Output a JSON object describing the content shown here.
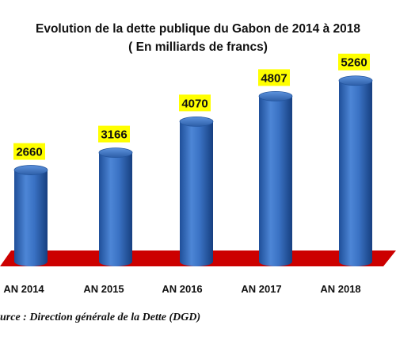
{
  "chart_data": {
    "type": "bar",
    "title": "Evolution de la dette publique du Gabon de 2014 à 2018",
    "subtitle": "( En milliards de francs)",
    "categories": [
      "AN 2014",
      "AN 2015",
      "AN 2016",
      "AN 2017",
      "AN 2018"
    ],
    "values": [
      2660,
      3166,
      4070,
      4807,
      5260
    ],
    "ylim": [
      0,
      5500
    ],
    "grid": false,
    "legend": "none",
    "colors": {
      "bar": "#3a72c4",
      "floor": "#cc0000",
      "label_bg": "#ffff00"
    }
  },
  "source": "urce : Direction générale de la Dette (DGD)"
}
